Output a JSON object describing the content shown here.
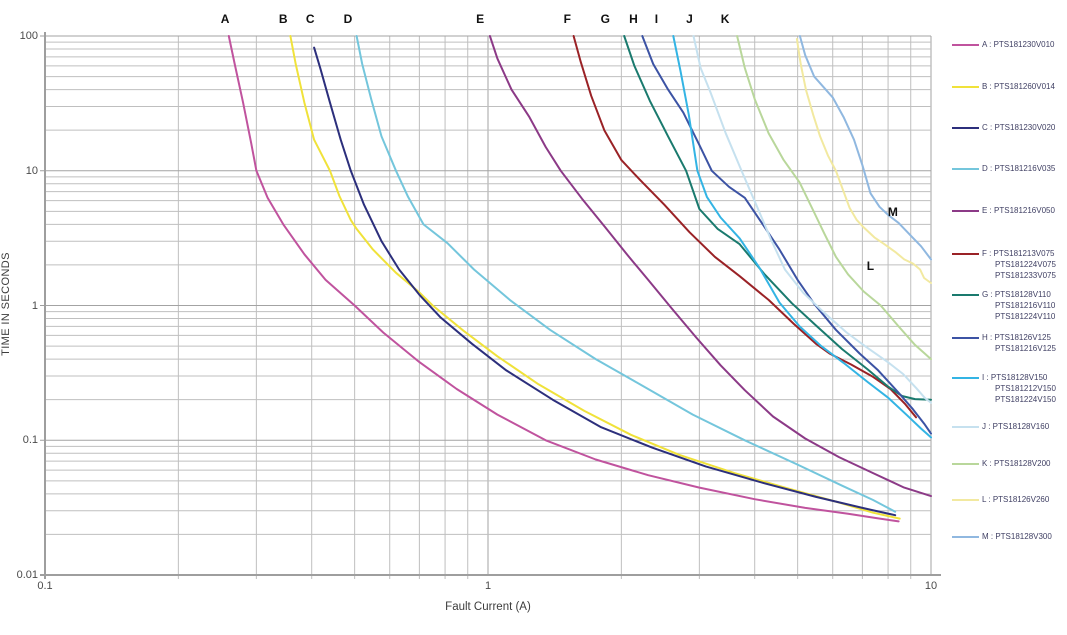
{
  "chart_data": {
    "type": "line",
    "title": "",
    "xlabel": "Fault Current (A)",
    "ylabel": "TIME IN SECONDS",
    "x_scale": "log",
    "y_scale": "log",
    "xlim": [
      0.1,
      10
    ],
    "ylim": [
      0.01,
      100
    ],
    "grid": {
      "major": true,
      "minor": true
    },
    "legend_position": "right",
    "x_ticks": [
      {
        "value": 0.1,
        "label": "0.1"
      },
      {
        "value": 1,
        "label": "1"
      },
      {
        "value": 10,
        "label": "10"
      }
    ],
    "y_ticks": [
      {
        "value": 100,
        "label": "100"
      },
      {
        "value": 10,
        "label": "10"
      },
      {
        "value": 1,
        "label": "1"
      },
      {
        "value": 0.1,
        "label": "0.1"
      },
      {
        "value": 0.01,
        "label": "0.01"
      }
    ],
    "series": [
      {
        "key": "A",
        "parts": [
          "PTS181230V010"
        ],
        "color": "#c0539e",
        "top_label_x": 0.255,
        "legend_y": 39,
        "points": [
          [
            0.26,
            100
          ],
          [
            0.268,
            62
          ],
          [
            0.28,
            32
          ],
          [
            0.292,
            16
          ],
          [
            0.3,
            10
          ],
          [
            0.318,
            6.3
          ],
          [
            0.345,
            4.0
          ],
          [
            0.385,
            2.4
          ],
          [
            0.43,
            1.55
          ],
          [
            0.5,
            1.0
          ],
          [
            0.58,
            0.63
          ],
          [
            0.7,
            0.38
          ],
          [
            0.85,
            0.24
          ],
          [
            1.05,
            0.155
          ],
          [
            1.35,
            0.1
          ],
          [
            1.75,
            0.072
          ],
          [
            2.3,
            0.055
          ],
          [
            3.0,
            0.0445
          ],
          [
            4.0,
            0.0365
          ],
          [
            5.2,
            0.0315
          ],
          [
            6.5,
            0.0285
          ],
          [
            7.5,
            0.0265
          ],
          [
            8.45,
            0.025
          ]
        ]
      },
      {
        "key": "B",
        "parts": [
          "PTS181260V014"
        ],
        "color": "#f0e23a",
        "top_label_x": 0.345,
        "legend_y": 81,
        "points": [
          [
            0.358,
            100
          ],
          [
            0.368,
            62
          ],
          [
            0.385,
            32
          ],
          [
            0.405,
            17
          ],
          [
            0.44,
            10
          ],
          [
            0.462,
            6.5
          ],
          [
            0.49,
            4.3
          ],
          [
            0.505,
            3.7
          ],
          [
            0.55,
            2.6
          ],
          [
            0.62,
            1.75
          ],
          [
            0.7,
            1.25
          ],
          [
            0.75,
            1.0
          ],
          [
            0.88,
            0.65
          ],
          [
            1.05,
            0.42
          ],
          [
            1.3,
            0.26
          ],
          [
            1.65,
            0.165
          ],
          [
            2.1,
            0.11
          ],
          [
            2.7,
            0.078
          ],
          [
            3.6,
            0.057
          ],
          [
            4.8,
            0.0435
          ],
          [
            6.2,
            0.0345
          ],
          [
            7.4,
            0.029
          ],
          [
            8.5,
            0.0262
          ]
        ]
      },
      {
        "key": "C",
        "parts": [
          "PTS181230V020"
        ],
        "color": "#2c2f7c",
        "top_label_x": 0.397,
        "legend_y": 122,
        "points": [
          [
            0.405,
            82
          ],
          [
            0.418,
            58
          ],
          [
            0.44,
            32
          ],
          [
            0.465,
            17
          ],
          [
            0.49,
            10
          ],
          [
            0.525,
            5.6
          ],
          [
            0.575,
            3.0
          ],
          [
            0.63,
            1.85
          ],
          [
            0.7,
            1.2
          ],
          [
            0.78,
            0.82
          ],
          [
            0.92,
            0.52
          ],
          [
            1.1,
            0.33
          ],
          [
            1.4,
            0.2
          ],
          [
            1.8,
            0.125
          ],
          [
            2.35,
            0.088
          ],
          [
            3.1,
            0.064
          ],
          [
            4.2,
            0.048
          ],
          [
            5.5,
            0.038
          ],
          [
            7.0,
            0.0315
          ],
          [
            8.3,
            0.0278
          ]
        ]
      },
      {
        "key": "D",
        "parts": [
          "PTS181216V035"
        ],
        "color": "#74c6dc",
        "top_label_x": 0.483,
        "legend_y": 163,
        "points": [
          [
            0.505,
            100
          ],
          [
            0.52,
            62
          ],
          [
            0.545,
            34
          ],
          [
            0.575,
            18
          ],
          [
            0.62,
            10
          ],
          [
            0.66,
            6.4
          ],
          [
            0.715,
            4.0
          ],
          [
            0.81,
            2.9
          ],
          [
            0.93,
            1.85
          ],
          [
            1.12,
            1.1
          ],
          [
            1.38,
            0.66
          ],
          [
            1.75,
            0.4
          ],
          [
            2.25,
            0.25
          ],
          [
            2.9,
            0.155
          ],
          [
            3.8,
            0.1
          ],
          [
            5.0,
            0.066
          ],
          [
            6.3,
            0.046
          ],
          [
            7.4,
            0.036
          ],
          [
            8.3,
            0.0295
          ]
        ]
      },
      {
        "key": "E",
        "parts": [
          "PTS181216V050"
        ],
        "color": "#8c3a87",
        "top_label_x": 0.96,
        "legend_y": 205,
        "points": [
          [
            1.01,
            100
          ],
          [
            1.05,
            68
          ],
          [
            1.13,
            40
          ],
          [
            1.24,
            25
          ],
          [
            1.35,
            15
          ],
          [
            1.46,
            10
          ],
          [
            1.63,
            6.2
          ],
          [
            1.84,
            3.8
          ],
          [
            2.08,
            2.3
          ],
          [
            2.3,
            1.55
          ],
          [
            2.6,
            0.95
          ],
          [
            2.95,
            0.58
          ],
          [
            3.35,
            0.36
          ],
          [
            3.8,
            0.235
          ],
          [
            4.4,
            0.15
          ],
          [
            5.2,
            0.103
          ],
          [
            6.2,
            0.075
          ],
          [
            7.4,
            0.057
          ],
          [
            8.7,
            0.0445
          ],
          [
            10,
            0.0385
          ]
        ]
      },
      {
        "key": "F",
        "parts": [
          "PTS181213V075",
          "PTS181224V075",
          "PTS181233V075"
        ],
        "color": "#9a2226",
        "top_label_x": 1.51,
        "legend_y": 248,
        "points": [
          [
            1.56,
            100
          ],
          [
            1.62,
            64
          ],
          [
            1.71,
            36
          ],
          [
            1.83,
            20
          ],
          [
            2.0,
            12
          ],
          [
            2.2,
            8.6
          ],
          [
            2.5,
            5.6
          ],
          [
            2.85,
            3.5
          ],
          [
            3.25,
            2.3
          ],
          [
            3.7,
            1.65
          ],
          [
            4.3,
            1.1
          ],
          [
            4.9,
            0.73
          ],
          [
            5.5,
            0.52
          ],
          [
            5.9,
            0.44
          ],
          [
            6.6,
            0.365
          ],
          [
            7.4,
            0.295
          ],
          [
            8.1,
            0.24
          ],
          [
            8.75,
            0.185
          ],
          [
            9.25,
            0.148
          ]
        ]
      },
      {
        "key": "G",
        "parts": [
          "PTS18128V110",
          "PTS181216V110",
          "PTS181224V110"
        ],
        "color": "#1a7a6e",
        "top_label_x": 1.84,
        "legend_y": 289,
        "points": [
          [
            2.03,
            100
          ],
          [
            2.14,
            60
          ],
          [
            2.32,
            33
          ],
          [
            2.55,
            18
          ],
          [
            2.8,
            10
          ],
          [
            3.0,
            5.2
          ],
          [
            3.3,
            3.7
          ],
          [
            3.7,
            2.85
          ],
          [
            4.2,
            1.72
          ],
          [
            4.85,
            1.04
          ],
          [
            5.5,
            0.71
          ],
          [
            6.3,
            0.475
          ],
          [
            7.2,
            0.335
          ],
          [
            8.0,
            0.25
          ],
          [
            8.6,
            0.213
          ],
          [
            9.2,
            0.202
          ],
          [
            10,
            0.2
          ]
        ]
      },
      {
        "key": "H",
        "parts": [
          "PTS18126V125",
          "PTS181216V125"
        ],
        "color": "#3c53a4",
        "top_label_x": 2.13,
        "legend_y": 332,
        "points": [
          [
            2.23,
            100
          ],
          [
            2.36,
            62
          ],
          [
            2.55,
            40
          ],
          [
            2.76,
            27
          ],
          [
            3.0,
            15.5
          ],
          [
            3.2,
            10
          ],
          [
            3.5,
            7.6
          ],
          [
            3.8,
            6.3
          ],
          [
            4.15,
            4.1
          ],
          [
            4.55,
            2.6
          ],
          [
            5.0,
            1.55
          ],
          [
            5.45,
            1.03
          ],
          [
            6.1,
            0.66
          ],
          [
            6.9,
            0.44
          ],
          [
            7.6,
            0.33
          ],
          [
            8.4,
            0.23
          ],
          [
            9.1,
            0.17
          ],
          [
            9.65,
            0.133
          ],
          [
            10,
            0.112
          ]
        ]
      },
      {
        "key": "I",
        "parts": [
          "PTS18128V150",
          "PTS181212V150",
          "PTS181224V150"
        ],
        "color": "#33b4e4",
        "top_label_x": 2.4,
        "legend_y": 372,
        "points": [
          [
            2.62,
            100
          ],
          [
            2.72,
            55
          ],
          [
            2.84,
            26
          ],
          [
            2.97,
            10
          ],
          [
            3.12,
            6.4
          ],
          [
            3.35,
            4.5
          ],
          [
            3.7,
            3.15
          ],
          [
            4.1,
            1.9
          ],
          [
            4.55,
            1.05
          ],
          [
            5.05,
            0.7
          ],
          [
            5.65,
            0.5
          ],
          [
            6.35,
            0.375
          ],
          [
            7.2,
            0.27
          ],
          [
            8.0,
            0.207
          ],
          [
            8.85,
            0.152
          ],
          [
            9.5,
            0.122
          ],
          [
            10,
            0.105
          ]
        ]
      },
      {
        "key": "J",
        "parts": [
          "PTS18128V160"
        ],
        "color": "#c6e1ef",
        "top_label_x": 2.85,
        "legend_y": 421,
        "points": [
          [
            2.91,
            100
          ],
          [
            3.02,
            58
          ],
          [
            3.18,
            38
          ],
          [
            3.44,
            19
          ],
          [
            3.75,
            9.7
          ],
          [
            4.05,
            5.4
          ],
          [
            4.35,
            3.1
          ],
          [
            4.68,
            1.85
          ],
          [
            5.15,
            1.24
          ],
          [
            5.75,
            0.88
          ],
          [
            6.45,
            0.63
          ],
          [
            7.15,
            0.49
          ],
          [
            7.95,
            0.385
          ],
          [
            8.65,
            0.31
          ],
          [
            9.25,
            0.245
          ],
          [
            9.7,
            0.205
          ],
          [
            10,
            0.19
          ]
        ]
      },
      {
        "key": "K",
        "parts": [
          "PTS18128V200"
        ],
        "color": "#b9d79b",
        "top_label_x": 3.43,
        "legend_y": 458,
        "points": [
          [
            3.65,
            100
          ],
          [
            3.8,
            58
          ],
          [
            4.0,
            34
          ],
          [
            4.3,
            19
          ],
          [
            4.65,
            12
          ],
          [
            5.05,
            8.2
          ],
          [
            5.4,
            5.2
          ],
          [
            5.75,
            3.4
          ],
          [
            6.1,
            2.3
          ],
          [
            6.5,
            1.7
          ],
          [
            7.05,
            1.27
          ],
          [
            7.7,
            1.0
          ],
          [
            8.45,
            0.7
          ],
          [
            9.2,
            0.51
          ],
          [
            10,
            0.4
          ]
        ]
      },
      {
        "key": "L",
        "parts": [
          "PTS18126V260"
        ],
        "color": "#f2e9a0",
        "top_label_x": null,
        "legend_y": 494,
        "points": [
          [
            4.98,
            95
          ],
          [
            5.08,
            62
          ],
          [
            5.22,
            40
          ],
          [
            5.42,
            26
          ],
          [
            5.62,
            18
          ],
          [
            5.85,
            13
          ],
          [
            6.1,
            10
          ],
          [
            6.32,
            7.3
          ],
          [
            6.55,
            5.3
          ],
          [
            6.8,
            4.3
          ],
          [
            7.05,
            3.8
          ],
          [
            7.45,
            3.2
          ],
          [
            7.85,
            2.85
          ],
          [
            8.3,
            2.5
          ],
          [
            8.7,
            2.2
          ],
          [
            9.1,
            2.05
          ],
          [
            9.45,
            1.85
          ],
          [
            9.65,
            1.6
          ],
          [
            10,
            1.47
          ]
        ]
      },
      {
        "key": "M",
        "parts": [
          "PTS18128V300"
        ],
        "color": "#90b8e0",
        "top_label_x": null,
        "legend_y": 531,
        "points": [
          [
            5.06,
            100
          ],
          [
            5.2,
            72
          ],
          [
            5.45,
            50
          ],
          [
            5.75,
            41
          ],
          [
            6.0,
            35
          ],
          [
            6.35,
            25
          ],
          [
            6.7,
            17
          ],
          [
            7.0,
            11
          ],
          [
            7.3,
            6.8
          ],
          [
            7.65,
            5.4
          ],
          [
            8.0,
            4.7
          ],
          [
            8.45,
            4.1
          ],
          [
            9.0,
            3.3
          ],
          [
            9.5,
            2.75
          ],
          [
            10,
            2.2
          ]
        ]
      }
    ],
    "annotations": [
      {
        "text": "M",
        "x": 8.2,
        "y": 4.9
      },
      {
        "text": "L",
        "x": 7.3,
        "y": 1.96
      }
    ]
  },
  "colors": {
    "grid_minor": "#bfbfbf",
    "grid_major": "#a3a3a3",
    "axis": "#9e9e9e",
    "tick_text": "#4a4a4a",
    "legend_text": "#3f3f63"
  }
}
